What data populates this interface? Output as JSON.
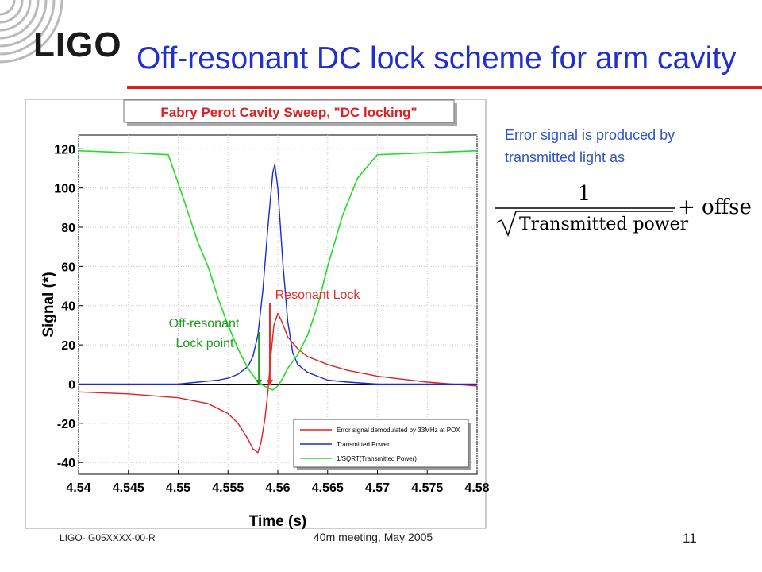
{
  "slide": {
    "title": "Off-resonant DC lock scheme for arm cavity",
    "logo": "LIGO",
    "note": "Error signal is produced by transmitted light as",
    "formula": {
      "numerator": "1",
      "denominator": "Transmitted power",
      "suffix": "+ offset"
    },
    "footer_left": "LIGO- G05XXXX-00-R",
    "footer_center": "40m meeting, May 2005",
    "page_number": "11"
  },
  "colors": {
    "title": "#1f2fd0",
    "note": "#2e55c8",
    "error_signal": "#e02020",
    "transmitted_power": "#1a2ad8",
    "inv_sqrt": "#22dd22",
    "off_resonant_label": "#1e9a1e",
    "resonant_label": "#e03030"
  },
  "chart_data": {
    "type": "line",
    "title": "Fabry Perot Cavity Sweep, \"DC locking\"",
    "xlabel": "Time (s)",
    "ylabel": "Signal (*)",
    "xlim": [
      4.54,
      4.58
    ],
    "ylim": [
      -46,
      127
    ],
    "grid": true,
    "legend_position": "bottom-right",
    "x_ticks": [
      {
        "value": 4.54,
        "label": "4.54"
      },
      {
        "value": 4.545,
        "label": "4.545"
      },
      {
        "value": 4.55,
        "label": "4.55"
      },
      {
        "value": 4.555,
        "label": "4.555"
      },
      {
        "value": 4.56,
        "label": "4.56"
      },
      {
        "value": 4.565,
        "label": "4.565"
      },
      {
        "value": 4.57,
        "label": "4.57"
      },
      {
        "value": 4.575,
        "label": "4.575"
      },
      {
        "value": 4.58,
        "label": "4.58"
      }
    ],
    "y_ticks": [
      {
        "value": -40,
        "label": "-40"
      },
      {
        "value": -20,
        "label": "-20"
      },
      {
        "value": 0,
        "label": "0"
      },
      {
        "value": 20,
        "label": "20"
      },
      {
        "value": 40,
        "label": "40"
      },
      {
        "value": 60,
        "label": "60"
      },
      {
        "value": 80,
        "label": "80"
      },
      {
        "value": 100,
        "label": "100"
      },
      {
        "value": 120,
        "label": "120"
      }
    ],
    "series": [
      {
        "name": "Error signal demodulated by 33MHz at POX",
        "color": "#e02020",
        "x": [
          4.54,
          4.545,
          4.55,
          4.553,
          4.555,
          4.556,
          4.557,
          4.5575,
          4.558,
          4.5583,
          4.5587,
          4.559,
          4.5593,
          4.5596,
          4.56,
          4.5603,
          4.5607,
          4.561,
          4.562,
          4.563,
          4.565,
          4.567,
          4.57,
          4.575,
          4.58
        ],
        "y": [
          -4,
          -5,
          -7,
          -10,
          -15,
          -20,
          -28,
          -33,
          -35,
          -30,
          -18,
          -4,
          14,
          30,
          36,
          33,
          28,
          24,
          18,
          14,
          10,
          7,
          4,
          1,
          -1
        ]
      },
      {
        "name": "Transmitted Power",
        "color": "#1a2ad8",
        "x": [
          4.54,
          4.55,
          4.552,
          4.554,
          4.555,
          4.556,
          4.557,
          4.5575,
          4.558,
          4.5585,
          4.559,
          4.5595,
          4.5597,
          4.56,
          4.5605,
          4.561,
          4.5615,
          4.562,
          4.563,
          4.564,
          4.565,
          4.567,
          4.57,
          4.58
        ],
        "y": [
          0,
          0,
          1,
          2,
          3,
          5,
          9,
          14,
          25,
          48,
          80,
          108,
          112,
          100,
          62,
          32,
          16,
          10,
          6,
          4,
          2,
          1,
          0,
          0
        ]
      },
      {
        "name": "1/SQRT(Transmitted Power)",
        "color": "#22dd22",
        "x": [
          4.54,
          4.545,
          4.549,
          4.5505,
          4.552,
          4.553,
          4.554,
          4.555,
          4.556,
          4.557,
          4.558,
          4.559,
          4.5595,
          4.56,
          4.5605,
          4.561,
          4.562,
          4.563,
          4.564,
          4.565,
          4.5665,
          4.568,
          4.57,
          4.575,
          4.58
        ],
        "y": [
          119,
          118,
          117,
          95,
          72,
          60,
          44,
          30,
          18,
          8,
          1,
          -2,
          -3,
          -1,
          3,
          8,
          15,
          25,
          40,
          60,
          86,
          105,
          117,
          118,
          119
        ]
      }
    ],
    "annotations": [
      {
        "text_lines": [
          "Off-resonant",
          "Lock point"
        ],
        "arrow_x": 4.5581,
        "arrow_y": -1,
        "color": "#1e9a1e"
      },
      {
        "text_lines": [
          "Resonant Lock"
        ],
        "arrow_x": 4.5592,
        "arrow_y": -1,
        "color": "#e03030"
      }
    ]
  }
}
